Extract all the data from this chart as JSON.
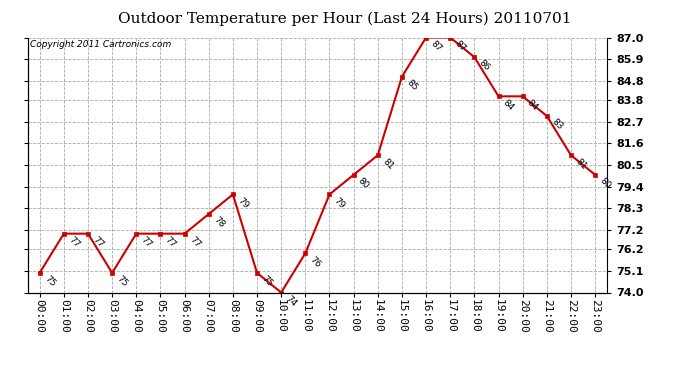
{
  "title": "Outdoor Temperature per Hour (Last 24 Hours) 20110701",
  "copyright": "Copyright 2011 Cartronics.com",
  "hours": [
    "00:00",
    "01:00",
    "02:00",
    "03:00",
    "04:00",
    "05:00",
    "06:00",
    "07:00",
    "08:00",
    "09:00",
    "10:00",
    "11:00",
    "12:00",
    "13:00",
    "14:00",
    "15:00",
    "16:00",
    "17:00",
    "18:00",
    "19:00",
    "20:00",
    "21:00",
    "22:00",
    "23:00"
  ],
  "temps": [
    75,
    77,
    77,
    75,
    77,
    77,
    77,
    78,
    79,
    75,
    74,
    76,
    79,
    80,
    81,
    85,
    87,
    87,
    86,
    84,
    84,
    83,
    81,
    80
  ],
  "ylim_min": 74.0,
  "ylim_max": 87.0,
  "yticks": [
    74.0,
    75.1,
    76.2,
    77.2,
    78.3,
    79.4,
    80.5,
    81.6,
    82.7,
    83.8,
    84.8,
    85.9,
    87.0
  ],
  "line_color": "#cc0000",
  "marker_color": "#cc0000",
  "bg_color": "#ffffff",
  "grid_color": "#aaaaaa",
  "title_fontsize": 11,
  "label_fontsize": 8,
  "annotation_fontsize": 6.5,
  "copyright_fontsize": 6.5
}
